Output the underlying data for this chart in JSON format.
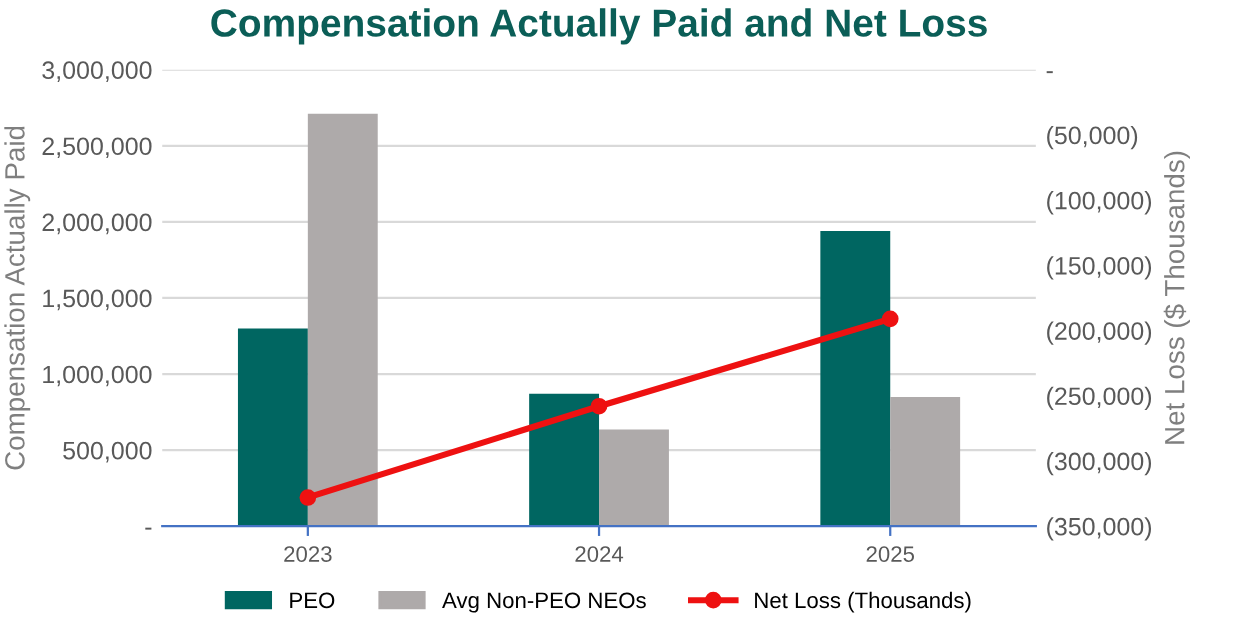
{
  "chart_data": {
    "type": "bar",
    "title": "Compensation Actually Paid and Net Loss",
    "ylabel": "Compensation Actually Paid",
    "y2label": "Net Loss ($ Thousands)",
    "categories": [
      "2023",
      "2024",
      "2025"
    ],
    "series": [
      {
        "name": "PEO",
        "color": "#006661",
        "values": [
          1300000,
          870000,
          1940000
        ]
      },
      {
        "name": "Avg Non-PEO NEOs",
        "color": "#aeaaaa",
        "values": [
          2710000,
          635000,
          850000
        ]
      },
      {
        "name": "Net Loss (Thousands)",
        "type": "line",
        "axis": "y2",
        "color": "#ee1111",
        "marker": "circle",
        "values": [
          -328000,
          -258000,
          -191000
        ]
      }
    ],
    "ylim": [
      0,
      3000000
    ],
    "yticks": [
      {
        "value": 0,
        "label": "-"
      },
      {
        "value": 500000,
        "label": "500,000"
      },
      {
        "value": 1000000,
        "label": "1,000,000"
      },
      {
        "value": 1500000,
        "label": "1,500,000"
      },
      {
        "value": 2000000,
        "label": "2,000,000"
      },
      {
        "value": 2500000,
        "label": "2,500,000"
      },
      {
        "value": 3000000,
        "label": "3,000,000"
      }
    ],
    "y2lim": [
      -350000,
      0
    ],
    "y2ticks": [
      {
        "value": 0,
        "label": "-"
      },
      {
        "value": -50000,
        "label": "(50,000)"
      },
      {
        "value": -100000,
        "label": "(100,000)"
      },
      {
        "value": -150000,
        "label": "(150,000)"
      },
      {
        "value": -200000,
        "label": "(200,000)"
      },
      {
        "value": -250000,
        "label": "(250,000)"
      },
      {
        "value": -300000,
        "label": "(300,000)"
      },
      {
        "value": -350000,
        "label": "(350,000)"
      }
    ],
    "grid": "y",
    "legend": "bottom"
  }
}
